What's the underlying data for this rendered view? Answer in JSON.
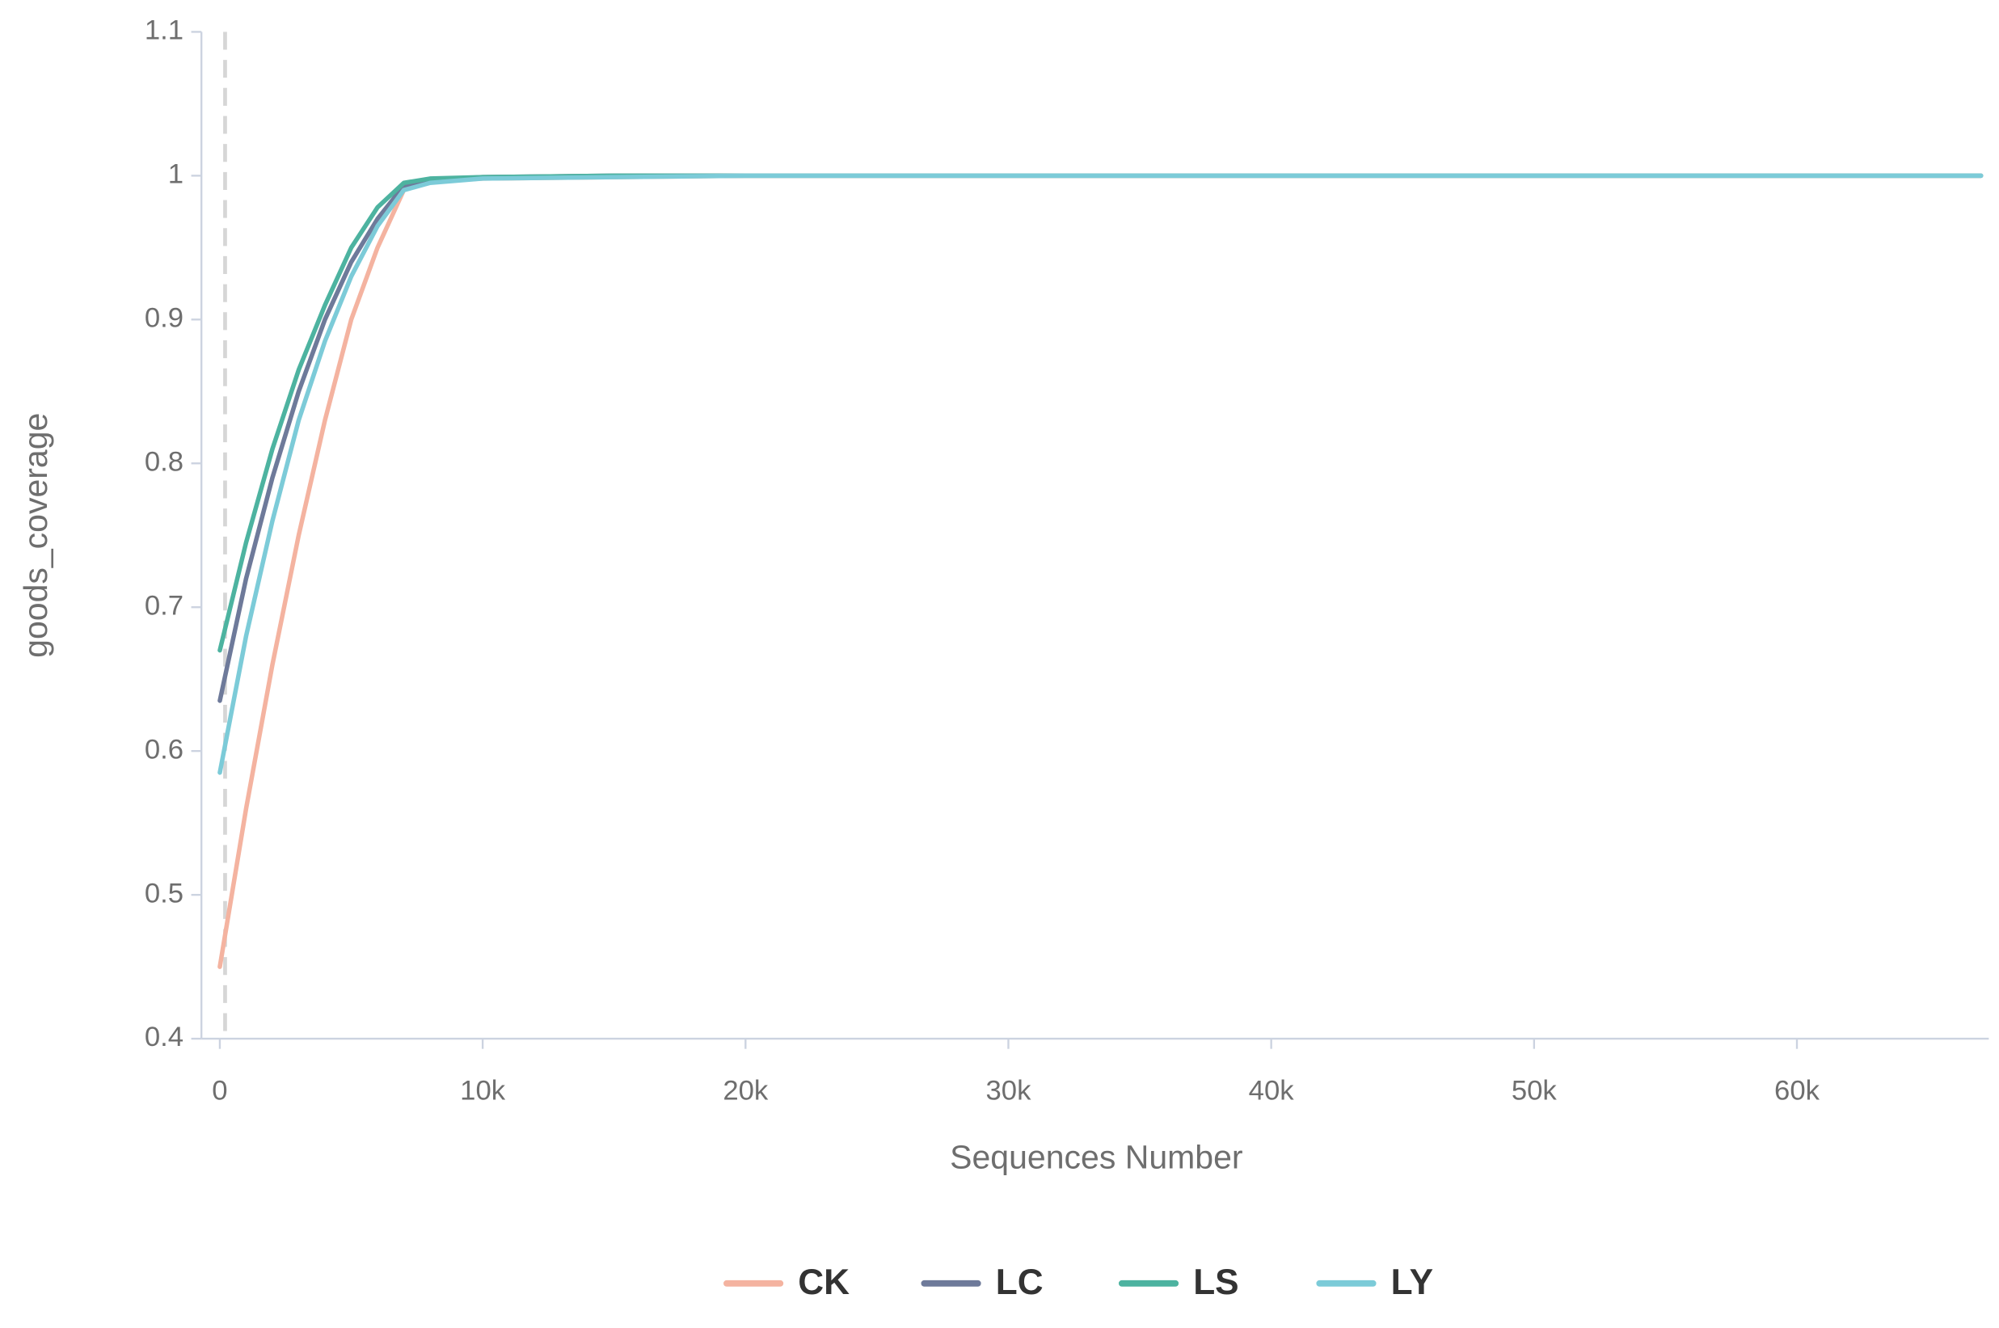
{
  "chart_data": {
    "type": "line",
    "x_label": "Sequences Number",
    "y_label": "goods_coverage",
    "x": [
      0,
      1000,
      2000,
      3000,
      4000,
      5000,
      6000,
      7000,
      8000,
      10000,
      15000,
      20000,
      67000
    ],
    "series": [
      {
        "name": "CK",
        "color": "#f4b3a0",
        "values": [
          0.45,
          0.56,
          0.66,
          0.75,
          0.83,
          0.9,
          0.95,
          0.99,
          0.996,
          0.998,
          0.999,
          1,
          1
        ]
      },
      {
        "name": "LC",
        "color": "#6e7a9a",
        "values": [
          0.635,
          0.72,
          0.79,
          0.85,
          0.9,
          0.94,
          0.97,
          0.993,
          0.997,
          0.999,
          1,
          1,
          1
        ]
      },
      {
        "name": "LS",
        "color": "#4db3a0",
        "values": [
          0.67,
          0.745,
          0.81,
          0.865,
          0.91,
          0.95,
          0.978,
          0.995,
          0.998,
          0.999,
          1,
          1,
          1
        ]
      },
      {
        "name": "LY",
        "color": "#7ccbd8",
        "values": [
          0.585,
          0.68,
          0.76,
          0.83,
          0.885,
          0.93,
          0.965,
          0.99,
          0.995,
          0.998,
          0.999,
          1,
          1
        ]
      }
    ],
    "xlim": [
      -700,
      67300
    ],
    "ylim": [
      0.4,
      1.1
    ],
    "xticks": [
      0,
      {
        "value": 10000,
        "label": "10k"
      },
      {
        "value": 20000,
        "label": "20k"
      },
      {
        "value": 30000,
        "label": "30k"
      },
      {
        "value": 40000,
        "label": "40k"
      },
      {
        "value": 50000,
        "label": "50k"
      },
      {
        "value": 60000,
        "label": "60k"
      }
    ],
    "yticks": [
      0.4,
      0.5,
      0.6,
      0.7,
      0.8,
      0.9,
      1,
      1.1
    ],
    "reference_line_x": 200,
    "grid": false,
    "legend": "bottom"
  }
}
